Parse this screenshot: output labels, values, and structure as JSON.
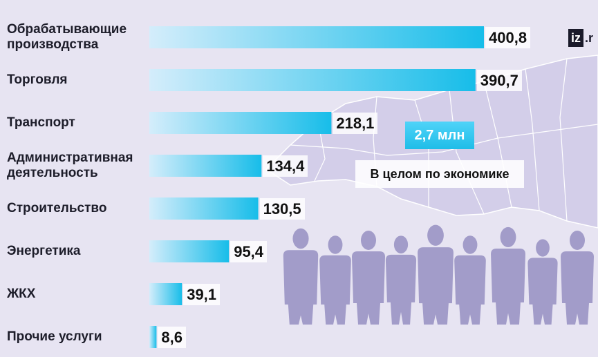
{
  "chart_data": {
    "type": "bar",
    "orientation": "horizontal",
    "categories": [
      "Обрабатывающие производства",
      "Торговля",
      "Транспорт",
      "Административная деятельность",
      "Строительство",
      "Энергетика",
      "ЖКХ",
      "Прочие услуги"
    ],
    "category_lines": [
      [
        "Обрабатывающие",
        "производства"
      ],
      [
        "Торговля"
      ],
      [
        "Транспорт"
      ],
      [
        "Административная",
        "деятельность"
      ],
      [
        "Строительство"
      ],
      [
        "Энергетика"
      ],
      [
        "ЖКХ"
      ],
      [
        "Прочие услуги"
      ]
    ],
    "values": [
      400.8,
      390.7,
      218.1,
      134.4,
      130.5,
      95.4,
      39.1,
      8.6
    ],
    "value_labels": [
      "400,8",
      "390,7",
      "218,1",
      "134,4",
      "130,5",
      "95,4",
      "39,1",
      "8,6"
    ],
    "xlim": [
      0,
      400.8
    ],
    "grid": false,
    "legend": "none"
  },
  "total": {
    "value": "2,7 млн",
    "label": "В целом по экономике"
  },
  "colors": {
    "bar_start": "#d4edfb",
    "bar_end": "#17bde9",
    "background": "#e7e4f2",
    "silhouette": "#a29cc9",
    "map": "#d3cee9"
  },
  "brand": {
    "logo_box": "iz",
    "logo_rest": ".r"
  }
}
